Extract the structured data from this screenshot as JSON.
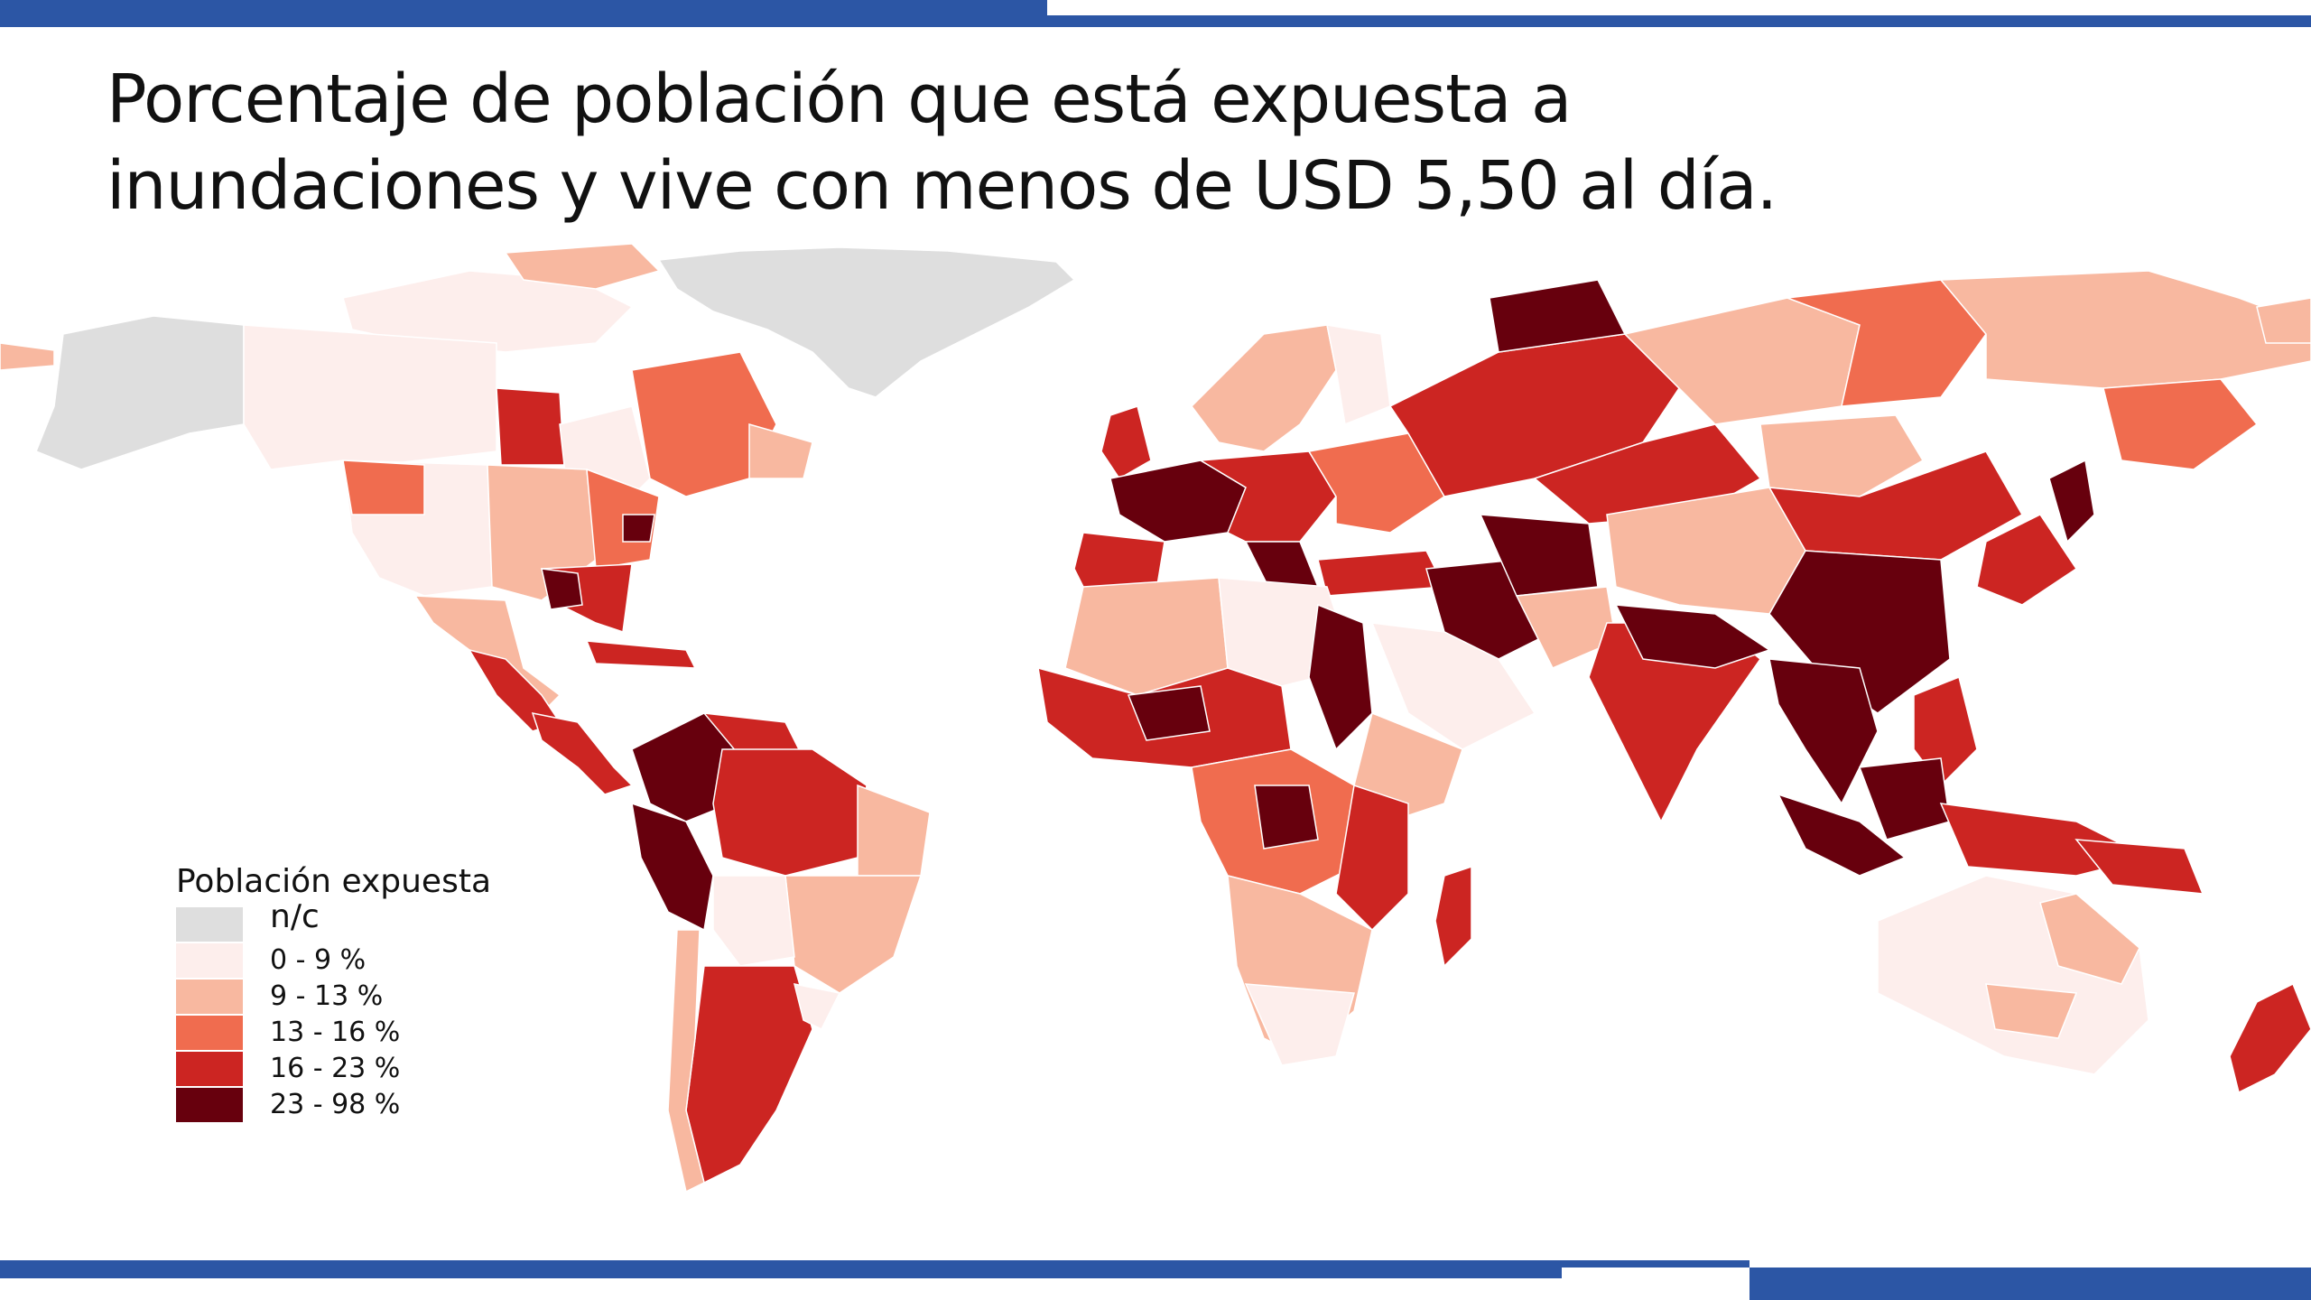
{
  "title": {
    "line1": "Porcentaje de población que está expuesta a",
    "line2": "inundaciones y vive con menos de USD 5,50 al día."
  },
  "legend": {
    "title": "Población expuesta",
    "items": [
      {
        "label": "n/c",
        "color": "#dedede"
      },
      {
        "label": "0 - 9 %",
        "color": "#fdeeec"
      },
      {
        "label": "9 - 13 %",
        "color": "#f8b8a0"
      },
      {
        "label": "13 - 16 %",
        "color": "#f06c4f"
      },
      {
        "label": "16 - 23 %",
        "color": "#cc2522"
      },
      {
        "label": "23 - 98 %",
        "color": "#67000d"
      }
    ]
  },
  "theme": {
    "accent": "#2c56a5",
    "background": "#ffffff",
    "text": "#111111"
  }
}
